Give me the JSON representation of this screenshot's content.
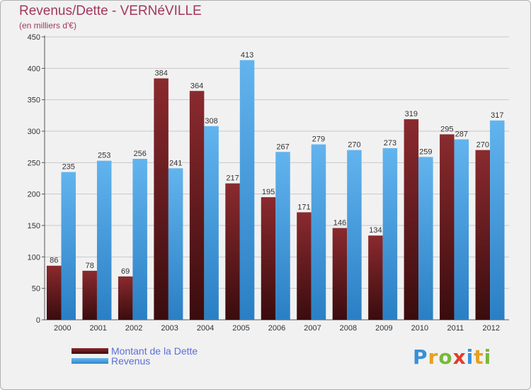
{
  "chart_data": {
    "type": "bar",
    "title": "Revenus/Dette - VERNéVILLE",
    "subtitle": "(en milliers d'€)",
    "categories": [
      "2000",
      "2001",
      "2002",
      "2003",
      "2004",
      "2005",
      "2006",
      "2007",
      "2008",
      "2009",
      "2010",
      "2011",
      "2012"
    ],
    "series": [
      {
        "name": "Montant de la Dette",
        "color": "#7a2326",
        "values": [
          86,
          78,
          69,
          384,
          364,
          217,
          195,
          171,
          146,
          134,
          319,
          295,
          270
        ]
      },
      {
        "name": "Revenus",
        "color": "#4aa3e6",
        "values": [
          235,
          253,
          256,
          241,
          308,
          413,
          267,
          279,
          270,
          273,
          259,
          287,
          317
        ]
      }
    ],
    "ylim": [
      0,
      450
    ],
    "yticks": [
      0,
      50,
      100,
      150,
      200,
      250,
      300,
      350,
      400,
      450
    ],
    "grid": true,
    "legend_position": "bottom-left"
  },
  "logo": {
    "text": "Proxiti"
  }
}
